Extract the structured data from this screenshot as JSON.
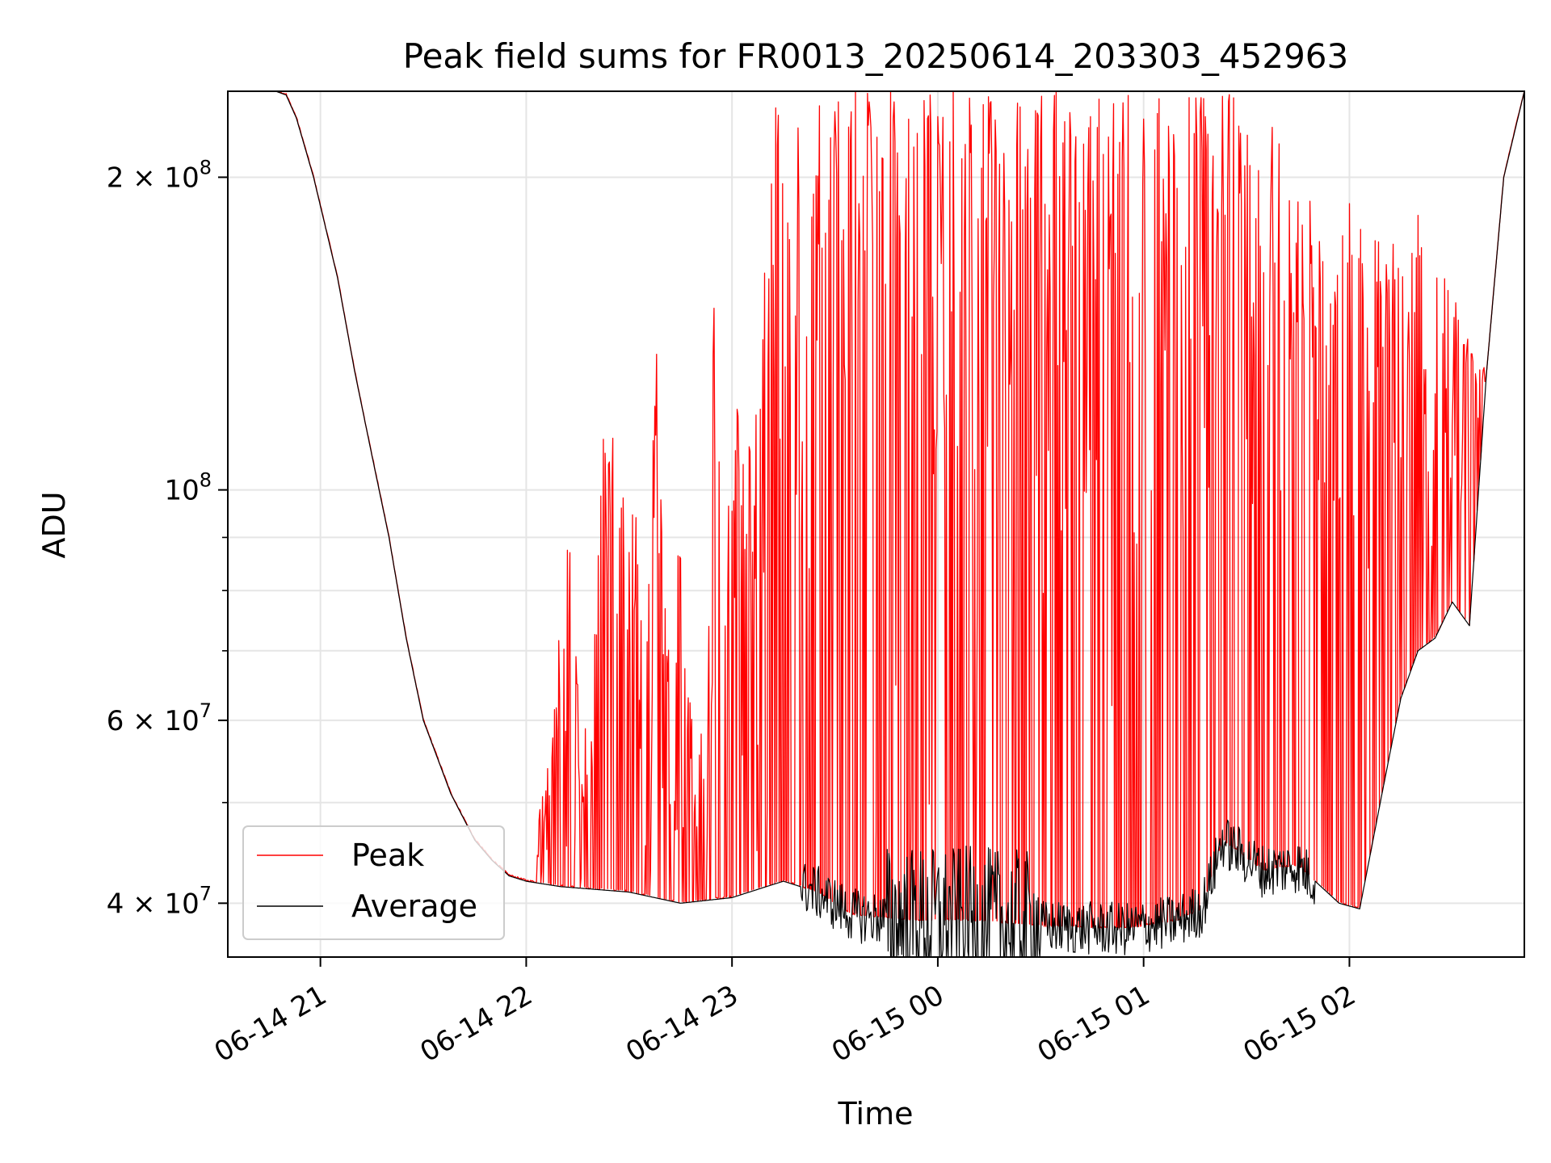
{
  "chart_data": {
    "type": "line",
    "title": "Peak field sums for FR0013_20250614_203303_452963",
    "xlabel": "Time",
    "ylabel": "ADU",
    "y_scale": "log",
    "ylim": [
      35500000,
      242000000
    ],
    "xlim": [
      "2025-06-14 20:33",
      "2025-06-15 02:51"
    ],
    "grid": true,
    "legend": {
      "placement": "lower-left",
      "entries": [
        "Peak",
        "Average"
      ]
    },
    "colors": {
      "Peak": "#ff0000",
      "Average": "#000000"
    },
    "x_ticks": [
      {
        "t": "2025-06-14 21:00",
        "label": "06-14 21"
      },
      {
        "t": "2025-06-14 22:00",
        "label": "06-14 22"
      },
      {
        "t": "2025-06-14 23:00",
        "label": "06-14 23"
      },
      {
        "t": "2025-06-15 00:00",
        "label": "06-15 00"
      },
      {
        "t": "2025-06-15 01:00",
        "label": "06-15 01"
      },
      {
        "t": "2025-06-15 02:00",
        "label": "06-15 02"
      }
    ],
    "y_ticks": [
      {
        "value": 40000000,
        "mantissa": "4",
        "exponent": "7"
      },
      {
        "value": 60000000,
        "mantissa": "6",
        "exponent": "7"
      },
      {
        "value": 100000000,
        "mantissa": "",
        "exponent": "8"
      },
      {
        "value": 200000000,
        "mantissa": "2",
        "exponent": "8"
      }
    ],
    "y_minor_ticks": [
      50000000,
      70000000,
      80000000,
      90000000
    ],
    "series": [
      {
        "name": "Average",
        "x": [
          "2025-06-14 20:33",
          "2025-06-14 20:47",
          "2025-06-14 20:50",
          "2025-06-14 20:53",
          "2025-06-14 20:58",
          "2025-06-14 21:05",
          "2025-06-14 21:10",
          "2025-06-14 21:15",
          "2025-06-14 21:20",
          "2025-06-14 21:25",
          "2025-06-14 21:30",
          "2025-06-14 21:38",
          "2025-06-14 21:45",
          "2025-06-14 21:50",
          "2025-06-14 21:55",
          "2025-06-14 22:00",
          "2025-06-14 22:10",
          "2025-06-14 22:30",
          "2025-06-14 22:45",
          "2025-06-14 23:00",
          "2025-06-14 23:10",
          "2025-06-14 23:15",
          "2025-06-14 23:25",
          "2025-06-14 23:35",
          "2025-06-14 23:50",
          "2025-06-15 00:10",
          "2025-06-15 00:30",
          "2025-06-15 00:55",
          "2025-06-15 01:10",
          "2025-06-15 01:17",
          "2025-06-15 01:23",
          "2025-06-15 01:35",
          "2025-06-15 01:45",
          "2025-06-15 01:57",
          "2025-06-15 02:03",
          "2025-06-15 02:10",
          "2025-06-15 02:15",
          "2025-06-15 02:20",
          "2025-06-15 02:25",
          "2025-06-15 02:30",
          "2025-06-15 02:35",
          "2025-06-15 02:40",
          "2025-06-15 02:45",
          "2025-06-15 02:51"
        ],
        "y": [
          242000000,
          242000000,
          240000000,
          228000000,
          200000000,
          160000000,
          130000000,
          108000000,
          90000000,
          72000000,
          60000000,
          51000000,
          46000000,
          44000000,
          42500000,
          42000000,
          41500000,
          41000000,
          40000000,
          40500000,
          41500000,
          42000000,
          41000000,
          39000000,
          38500000,
          38500000,
          38000000,
          37800000,
          38500000,
          39500000,
          46000000,
          43000000,
          43500000,
          40000000,
          39500000,
          52000000,
          63000000,
          70000000,
          72000000,
          78000000,
          74000000,
          130000000,
          200000000,
          242000000
        ]
      },
      {
        "name": "Peak",
        "x": [
          "2025-06-14 20:33",
          "2025-06-14 20:47",
          "2025-06-14 20:50",
          "2025-06-14 20:53",
          "2025-06-14 20:58",
          "2025-06-14 21:05",
          "2025-06-14 21:10",
          "2025-06-14 21:15",
          "2025-06-14 21:20",
          "2025-06-14 21:25",
          "2025-06-14 21:30",
          "2025-06-14 21:38",
          "2025-06-14 21:45",
          "2025-06-14 21:50",
          "2025-06-14 21:55",
          "2025-06-14 22:00",
          "2025-06-14 22:10",
          "2025-06-14 22:30",
          "2025-06-14 22:45",
          "2025-06-14 23:00",
          "2025-06-14 23:10",
          "2025-06-14 23:15",
          "2025-06-14 23:25",
          "2025-06-14 23:35",
          "2025-06-14 23:50",
          "2025-06-15 00:10",
          "2025-06-15 00:30",
          "2025-06-15 00:55",
          "2025-06-15 01:10",
          "2025-06-15 01:17",
          "2025-06-15 01:23",
          "2025-06-15 01:35",
          "2025-06-15 01:45",
          "2025-06-15 01:57",
          "2025-06-15 02:03",
          "2025-06-15 02:10",
          "2025-06-15 02:15",
          "2025-06-15 02:20",
          "2025-06-15 02:25",
          "2025-06-15 02:30",
          "2025-06-15 02:35",
          "2025-06-15 02:40",
          "2025-06-15 02:45",
          "2025-06-15 02:51"
        ],
        "y": [
          242000000,
          242000000,
          240000000,
          228000000,
          200000000,
          160000000,
          130000000,
          108000000,
          90000000,
          72000000,
          60000000,
          51000000,
          46000000,
          44000000,
          42500000,
          42000000,
          41500000,
          41000000,
          40000000,
          40500000,
          41500000,
          42000000,
          41000000,
          39000000,
          38500000,
          38500000,
          38000000,
          37800000,
          38500000,
          39500000,
          46000000,
          43000000,
          43500000,
          40000000,
          39500000,
          52000000,
          63000000,
          70000000,
          72000000,
          78000000,
          74000000,
          130000000,
          200000000,
          242000000
        ],
        "spikes": [
          {
            "t": "2025-06-14 22:03",
            "y": 46000000
          },
          {
            "t": "2025-06-14 22:13",
            "y": 97000000
          },
          {
            "t": "2025-06-14 22:16",
            "y": 54000000
          },
          {
            "t": "2025-06-14 22:20",
            "y": 76000000
          },
          {
            "t": "2025-06-14 22:23",
            "y": 126000000
          },
          {
            "t": "2025-06-14 22:28",
            "y": 98000000
          },
          {
            "t": "2025-06-14 22:31",
            "y": 108000000
          },
          {
            "t": "2025-06-14 22:35",
            "y": 68000000
          },
          {
            "t": "2025-06-14 22:38",
            "y": 155000000
          },
          {
            "t": "2025-06-14 22:41",
            "y": 75000000
          },
          {
            "t": "2025-06-14 22:44",
            "y": 104000000
          },
          {
            "t": "2025-06-14 22:50",
            "y": 55000000
          },
          {
            "t": "2025-06-14 22:53",
            "y": 85000000
          },
          {
            "t": "2025-06-14 22:55",
            "y": 170000000
          },
          {
            "t": "2025-06-14 22:58",
            "y": 95000000
          },
          {
            "t": "2025-06-14 23:02",
            "y": 140000000
          },
          {
            "t": "2025-06-14 23:06",
            "y": 105000000
          },
          {
            "t": "2025-06-14 23:09",
            "y": 165000000
          },
          {
            "t": "2025-06-14 23:13",
            "y": 242000000
          },
          {
            "t": "2025-06-14 23:17",
            "y": 242000000
          },
          {
            "t": "2025-06-14 23:21",
            "y": 242000000
          },
          {
            "t": "2025-06-14 23:26",
            "y": 242000000
          },
          {
            "t": "2025-06-14 23:30",
            "y": 242000000
          },
          {
            "t": "2025-06-14 23:35",
            "y": 242000000
          },
          {
            "t": "2025-06-14 23:40",
            "y": 242000000
          },
          {
            "t": "2025-06-14 23:45",
            "y": 242000000
          },
          {
            "t": "2025-06-14 23:50",
            "y": 242000000
          },
          {
            "t": "2025-06-14 23:55",
            "y": 242000000
          },
          {
            "t": "2025-06-15 00:00",
            "y": 242000000
          },
          {
            "t": "2025-06-15 00:05",
            "y": 242000000
          },
          {
            "t": "2025-06-15 00:10",
            "y": 242000000
          },
          {
            "t": "2025-06-15 00:15",
            "y": 242000000
          },
          {
            "t": "2025-06-15 00:20",
            "y": 242000000
          },
          {
            "t": "2025-06-15 00:25",
            "y": 242000000
          },
          {
            "t": "2025-06-15 00:30",
            "y": 242000000
          },
          {
            "t": "2025-06-15 00:35",
            "y": 242000000
          },
          {
            "t": "2025-06-15 00:40",
            "y": 242000000
          },
          {
            "t": "2025-06-15 00:45",
            "y": 242000000
          },
          {
            "t": "2025-06-15 00:50",
            "y": 242000000
          },
          {
            "t": "2025-06-15 00:55",
            "y": 242000000
          },
          {
            "t": "2025-06-15 01:00",
            "y": 242000000
          },
          {
            "t": "2025-06-15 01:05",
            "y": 242000000
          },
          {
            "t": "2025-06-15 01:10",
            "y": 242000000
          },
          {
            "t": "2025-06-15 01:15",
            "y": 242000000
          },
          {
            "t": "2025-06-15 01:20",
            "y": 242000000
          },
          {
            "t": "2025-06-15 01:25",
            "y": 242000000
          },
          {
            "t": "2025-06-15 01:30",
            "y": 230000000
          },
          {
            "t": "2025-06-15 01:35",
            "y": 210000000
          },
          {
            "t": "2025-06-15 01:40",
            "y": 242000000
          },
          {
            "t": "2025-06-15 01:45",
            "y": 200000000
          },
          {
            "t": "2025-06-15 01:50",
            "y": 190000000
          },
          {
            "t": "2025-06-15 01:55",
            "y": 150000000
          },
          {
            "t": "2025-06-15 02:00",
            "y": 200000000
          },
          {
            "t": "2025-06-15 02:05",
            "y": 200000000
          },
          {
            "t": "2025-06-15 02:10",
            "y": 190000000
          },
          {
            "t": "2025-06-15 02:15",
            "y": 175000000
          },
          {
            "t": "2025-06-15 02:20",
            "y": 185000000
          },
          {
            "t": "2025-06-15 02:25",
            "y": 175000000
          },
          {
            "t": "2025-06-15 02:30",
            "y": 155000000
          },
          {
            "t": "2025-06-15 02:35",
            "y": 140000000
          },
          {
            "t": "2025-06-15 02:40",
            "y": 130000000
          }
        ]
      }
    ]
  }
}
